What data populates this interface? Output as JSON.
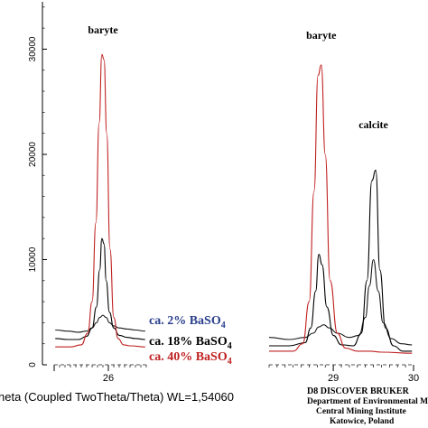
{
  "chart_data": {
    "type": "line",
    "xlabel": "heta (Coupled TwoTheta/Theta) WL=1,54060",
    "ylabel": "",
    "x_segments": [
      {
        "xlim": [
          25.0,
          26.7
        ],
        "ticks": [
          {
            "value": 26,
            "label": "26"
          }
        ]
      },
      {
        "xlim": [
          28.2,
          30.0
        ],
        "ticks": [
          {
            "value": 29,
            "label": "29"
          },
          {
            "value": 30,
            "label": "30"
          }
        ]
      }
    ],
    "ylim": [
      0,
      34500
    ],
    "yticks": [
      {
        "value": 0,
        "label": "0"
      },
      {
        "value": 10000,
        "label": "10000"
      },
      {
        "value": 20000,
        "label": "20000"
      },
      {
        "value": 30000,
        "label": "30000"
      }
    ],
    "peak_labels": [
      {
        "text": "baryte",
        "x": 25.9,
        "y": 31500
      },
      {
        "text": "baryte",
        "x": 28.85,
        "y": 31000
      },
      {
        "text": "calcite",
        "x": 29.5,
        "y": 22500
      }
    ],
    "series": [
      {
        "name": "ca. 2% BaSO4",
        "color": "#1a1a1a",
        "segments": [
          {
            "x": [
              25.02,
              25.25,
              25.45,
              25.6,
              25.7,
              25.78,
              25.84,
              25.9,
              25.96,
              26.02,
              26.1,
              26.2,
              26.35,
              26.5,
              26.68
            ],
            "y": [
              3300,
              3200,
              3100,
              3200,
              3500,
              4000,
              4500,
              4700,
              4500,
              4000,
              3700,
              3500,
              3400,
              3300,
              3200
            ]
          },
          {
            "x": [
              28.2,
              28.45,
              28.65,
              28.75,
              28.82,
              28.88,
              28.95,
              29.05,
              29.2,
              29.32,
              29.4,
              29.45,
              29.5,
              29.56,
              29.62,
              29.72,
              29.85,
              29.98
            ],
            "y": [
              2600,
              2400,
              2600,
              3000,
              3600,
              3800,
              3500,
              3000,
              2600,
              2800,
              4500,
              7500,
              10000,
              7000,
              4000,
              2500,
              2000,
              1900
            ]
          }
        ]
      },
      {
        "name": "ca. 18% BaSO4",
        "color": "#000000",
        "segments": [
          {
            "x": [
              25.02,
              25.25,
              25.45,
              25.6,
              25.7,
              25.78,
              25.84,
              25.88,
              25.92,
              25.96,
              26.02,
              26.1,
              26.2,
              26.35,
              26.5,
              26.68
            ],
            "y": [
              2500,
              2400,
              2400,
              2700,
              3500,
              5500,
              9000,
              12000,
              11500,
              8000,
              5000,
              3500,
              2800,
              2600,
              2500,
              2400
            ]
          },
          {
            "x": [
              28.2,
              28.45,
              28.65,
              28.72,
              28.78,
              28.82,
              28.86,
              28.92,
              29.0,
              29.1,
              29.25,
              29.35,
              29.42,
              29.48,
              29.53,
              29.58,
              29.65,
              29.75,
              29.87,
              29.98
            ],
            "y": [
              1800,
              1800,
              2100,
              3500,
              7000,
              10500,
              9500,
              5500,
              2800,
              1900,
              1800,
              3000,
              8000,
              17500,
              18500,
              9000,
              3500,
              1800,
              1300,
              1300
            ]
          }
        ]
      },
      {
        "name": "ca. 40% BaSO4",
        "color": "#c02020",
        "segments": [
          {
            "x": [
              25.02,
              25.3,
              25.5,
              25.62,
              25.7,
              25.77,
              25.83,
              25.88,
              25.92,
              25.97,
              26.03,
              26.1,
              26.18,
              26.28,
              26.4,
              26.68
            ],
            "y": [
              1700,
              1700,
              1900,
              3000,
              6000,
              13500,
              23000,
              29500,
              29000,
              22000,
              11000,
              4500,
              2500,
              1900,
              1800,
              1700
            ]
          },
          {
            "x": [
              28.2,
              28.5,
              28.62,
              28.7,
              28.76,
              28.81,
              28.85,
              28.9,
              28.96,
              29.05,
              29.15,
              29.3,
              29.45,
              29.6,
              29.98
            ],
            "y": [
              1300,
              1300,
              2000,
              6000,
              16500,
              27500,
              28500,
              20000,
              8000,
              3000,
              1600,
              1300,
              1300,
              1200,
              1100
            ]
          }
        ]
      }
    ],
    "legend": [
      {
        "label": "ca. 2% BaSO",
        "sub": "4",
        "color": "#2b3f8c"
      },
      {
        "label": "ca. 18% BaSO",
        "sub": "4",
        "color": "#000000"
      },
      {
        "label": "ca. 40% BaSO",
        "sub": "4",
        "color": "#c02020"
      }
    ],
    "legend_position": "bottom-center"
  },
  "footer": {
    "instrument": "D8 DISCOVER BRUKER",
    "department": "Department of Environmental Monito",
    "institute": "Central Mining Institute",
    "location": "Katowice, Poland"
  }
}
